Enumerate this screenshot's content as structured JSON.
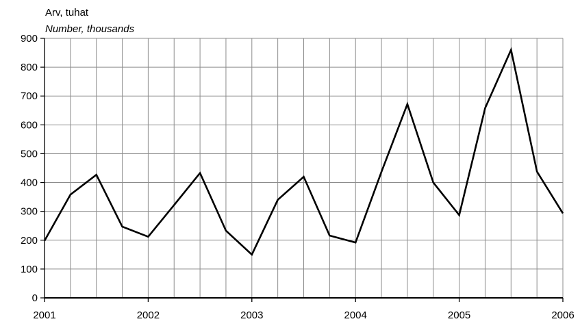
{
  "chart_data": {
    "type": "line",
    "ylabel": "Arv, tuhat",
    "ylabel_en": "Number, thousands",
    "ylim": [
      0,
      900
    ],
    "yticks": [
      0,
      100,
      200,
      300,
      400,
      500,
      600,
      700,
      800,
      900
    ],
    "xlim": [
      2001,
      2006
    ],
    "xtick_labels": [
      "2001",
      "2002",
      "2003",
      "2004",
      "2005",
      "2006"
    ],
    "grid": true,
    "series": [
      {
        "x": [
          2001.0,
          2001.25,
          2001.5,
          2001.75,
          2002.0,
          2002.25,
          2002.5,
          2002.75,
          2003.0,
          2003.25,
          2003.5,
          2003.75,
          2004.0,
          2004.25,
          2004.5,
          2004.75,
          2005.0,
          2005.25,
          2005.5,
          2005.75,
          2006.0
        ],
        "values": [
          198,
          358,
          427,
          247,
          212,
          322,
          433,
          233,
          150,
          340,
          420,
          216,
          192,
          437,
          672,
          400,
          287,
          658,
          860,
          438,
          293
        ],
        "color": "#000000"
      }
    ]
  }
}
